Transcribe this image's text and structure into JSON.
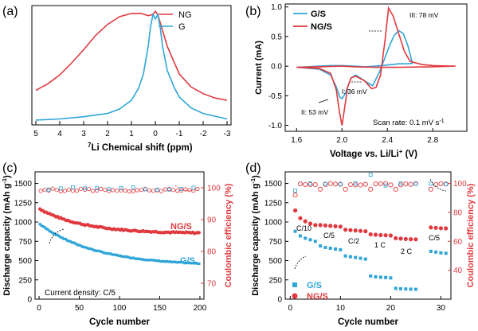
{
  "colors": {
    "ng": "#e0393e",
    "g": "#2fa5d8",
    "axis": "#000000"
  },
  "chart_data": [
    {
      "panel": "(a)",
      "type": "line",
      "xlabel": "7Li Chemical shift (ppm)",
      "xlabel_sup": "7",
      "xlabel_text": "Li Chemical shift (ppm)",
      "x_ticks": [
        "5",
        "4",
        "3",
        "2",
        "1",
        "0",
        "-1",
        "-2",
        "-3"
      ],
      "xlim": [
        5,
        -3
      ],
      "legend": [
        "NG",
        "G"
      ],
      "legend_position": "top-right",
      "series": [
        {
          "name": "NG",
          "x": [
            5,
            4.5,
            4,
            3.5,
            3,
            2.5,
            2,
            1.5,
            1,
            0.6,
            0.3,
            0.1,
            0,
            -0.1,
            -0.2,
            -0.5,
            -1,
            -1.5,
            -2,
            -2.5,
            -3
          ],
          "y": [
            0.3,
            0.36,
            0.44,
            0.55,
            0.67,
            0.8,
            0.9,
            0.97,
            1.0,
            1.0,
            0.98,
            0.99,
            1.02,
            0.99,
            0.92,
            0.7,
            0.45,
            0.33,
            0.27,
            0.23,
            0.21
          ]
        },
        {
          "name": "G",
          "x": [
            5,
            4,
            3,
            2,
            1.5,
            1,
            0.7,
            0.5,
            0.3,
            0.2,
            0.1,
            0,
            -0.1,
            -0.2,
            -0.3,
            -0.5,
            -0.8,
            -1,
            -1.5,
            -2,
            -3
          ],
          "y": [
            0.03,
            0.04,
            0.06,
            0.09,
            0.13,
            0.21,
            0.32,
            0.45,
            0.7,
            0.88,
            0.99,
            0.95,
            0.99,
            0.88,
            0.7,
            0.48,
            0.32,
            0.24,
            0.14,
            0.09,
            0.04
          ]
        }
      ]
    },
    {
      "panel": "(b)",
      "type": "line",
      "xlabel": "Voltage vs. Li/Li+ (V)",
      "ylabel": "Current (mA)",
      "xlim": [
        1.5,
        3.1
      ],
      "ylim": [
        -1.1,
        1.05
      ],
      "x_ticks": [
        1.6,
        2.0,
        2.4,
        2.8
      ],
      "y_ticks": [
        1.0,
        0.5,
        0.0,
        -0.5,
        -1.0
      ],
      "legend": [
        "G/S",
        "NG/S"
      ],
      "annotations": [
        "III: 78 mV",
        "I: 36 mV",
        "II: 53 mV"
      ],
      "scan_rate": "Scan rate: 0.1 mV s",
      "scan_rate_sup": "-1",
      "series": [
        {
          "name": "G/S",
          "x": [
            1.6,
            1.8,
            1.9,
            1.95,
            1.98,
            2.0,
            2.03,
            2.06,
            2.08,
            2.12,
            2.2,
            2.27,
            2.33,
            2.38,
            2.42,
            2.46,
            2.5,
            2.54,
            2.58,
            2.62,
            2.58,
            2.5,
            2.4,
            2.3,
            2.2,
            2.1,
            2.0,
            1.9,
            1.8,
            1.7,
            1.6
          ],
          "y": [
            -0.02,
            -0.05,
            -0.15,
            -0.35,
            -0.52,
            -0.55,
            -0.46,
            -0.3,
            -0.2,
            -0.15,
            -0.25,
            -0.33,
            -0.1,
            0.15,
            0.35,
            0.52,
            0.6,
            0.55,
            0.35,
            0.05,
            0.04,
            0.04,
            0.02,
            0.0,
            -0.01,
            0.0,
            0.01,
            0.01,
            0.0,
            -0.01,
            -0.02
          ]
        },
        {
          "name": "NG/S",
          "x": [
            1.6,
            1.8,
            1.9,
            1.95,
            1.98,
            2.0,
            2.02,
            2.05,
            2.08,
            2.12,
            2.2,
            2.26,
            2.3,
            2.34,
            2.38,
            2.41,
            2.45,
            2.5,
            2.55,
            2.6,
            2.7,
            2.8,
            2.95,
            3.0,
            2.8,
            2.5,
            2.3,
            2.1,
            2.0,
            1.8,
            1.6
          ],
          "y": [
            -0.02,
            -0.04,
            -0.12,
            -0.4,
            -0.8,
            -1.0,
            -0.75,
            -0.35,
            -0.2,
            -0.17,
            -0.25,
            -0.38,
            -0.36,
            -0.15,
            0.45,
            0.98,
            0.85,
            0.55,
            0.25,
            0.08,
            0.03,
            0.01,
            0.0,
            0.0,
            -0.01,
            -0.02,
            -0.02,
            -0.01,
            0.0,
            -0.01,
            -0.02
          ]
        }
      ]
    },
    {
      "panel": "(c)",
      "type": "scatter",
      "xlabel": "Cycle number",
      "ylabel": "Discharge capacity (mAh g-1)",
      "ylabel_right": "Coulombic efficiency (%)",
      "xlim": [
        -5,
        205
      ],
      "ylim": [
        0,
        1650
      ],
      "ylim_right": [
        65,
        105
      ],
      "x_ticks": [
        0,
        50,
        100,
        150,
        200
      ],
      "y_ticks": [
        0,
        250,
        500,
        750,
        1000,
        1250,
        1500
      ],
      "y_ticks_right": [
        70,
        80,
        90,
        100
      ],
      "labels": [
        "NG/S",
        "G/S",
        "Current density: C/5"
      ],
      "series": [
        {
          "name": "NG/S",
          "axis": "left",
          "start": 1175,
          "end": 850
        },
        {
          "name": "G/S",
          "axis": "left",
          "start": 980,
          "end": 430
        },
        {
          "name": "NG/S CE",
          "axis": "right",
          "value": 99.5
        },
        {
          "name": "G/S CE",
          "axis": "right",
          "value": 100
        }
      ]
    },
    {
      "panel": "(d)",
      "type": "scatter",
      "xlabel": "Cycle number",
      "ylabel": "Discharge capacity (mAh g-1)",
      "ylabel_right": "Coulombic efficiency (%)",
      "xlim": [
        -1,
        32
      ],
      "ylim": [
        0,
        1650
      ],
      "ylim_right": [
        20,
        108
      ],
      "x_ticks": [
        0,
        10,
        20,
        30
      ],
      "y_ticks": [
        0,
        250,
        500,
        750,
        1000,
        1250,
        1500
      ],
      "y_ticks_right": [
        40,
        60,
        80,
        100
      ],
      "legend": [
        "G/S",
        "NG/S"
      ],
      "rate_labels": [
        "C/10",
        "C/5",
        "C/2",
        "1 C",
        "2 C",
        "C/5"
      ],
      "series": [
        {
          "name": "G/S",
          "x": [
            1,
            2,
            3,
            4,
            5,
            6,
            7,
            8,
            9,
            10,
            11,
            12,
            13,
            14,
            15,
            16,
            17,
            18,
            19,
            20,
            21,
            22,
            23,
            24,
            25,
            28,
            29,
            30,
            31
          ],
          "y": [
            880,
            820,
            790,
            770,
            750,
            690,
            670,
            660,
            650,
            640,
            560,
            550,
            540,
            530,
            520,
            300,
            290,
            285,
            280,
            275,
            140,
            135,
            132,
            130,
            128,
            620,
            610,
            600,
            595
          ]
        },
        {
          "name": "NG/S",
          "x": [
            1,
            2,
            3,
            4,
            5,
            6,
            7,
            8,
            9,
            10,
            11,
            12,
            13,
            14,
            15,
            16,
            17,
            18,
            19,
            20,
            21,
            22,
            23,
            24,
            25,
            28,
            29,
            30,
            31
          ],
          "y": [
            1150,
            1050,
            1010,
            980,
            960,
            960,
            955,
            950,
            945,
            940,
            900,
            895,
            890,
            885,
            880,
            840,
            835,
            830,
            828,
            825,
            790,
            785,
            780,
            778,
            775,
            930,
            925,
            920,
            918
          ]
        },
        {
          "name": "G/S CE",
          "axis": "right",
          "value": 99
        },
        {
          "name": "NG/S CE",
          "axis": "right",
          "value": 100
        }
      ]
    }
  ],
  "texts": {
    "panel_a": "(a)",
    "panel_b": "(b)",
    "panel_c": "(c)",
    "panel_d": "(d)",
    "legend_a_ng": "NG",
    "legend_a_g": "G",
    "xlabel_a_sup": "7",
    "xlabel_a": "Li Chemical shift (ppm)",
    "legend_b_gs": "G/S",
    "legend_b_ngs": "NG/S",
    "ylabel_b": "Current (mA)",
    "xlabel_b": "Voltage vs. Li/Li",
    "xlabel_b_sup": "+",
    "xlabel_b_tail": " (V)",
    "ann_b_3": "III: 78 mV",
    "ann_b_1": "I: 36 mV",
    "ann_b_2": "II: 53 mV",
    "scan_rate": "Scan rate: 0.1 mV s",
    "scan_rate_sup": "-1",
    "xlabel_cd": "Cycle number",
    "ylabel_cd": "Discharge capacity (mAh g",
    "ylabel_cd_sup": "-1",
    "ylabel_cd_tail": ")",
    "ylabel_right": "Coulombic efficiency (%)",
    "label_c_ngs": "NG/S",
    "label_c_gs": "G/S",
    "current_density": "Current density: C/5",
    "legend_d_gs": "G/S",
    "legend_d_ngs": "NG/S",
    "rate_c10": "C/10",
    "rate_c5": "C/5",
    "rate_c2": "C/2",
    "rate_1c": "1 C",
    "rate_2c": "2 C",
    "rate_c5b": "C/5"
  }
}
